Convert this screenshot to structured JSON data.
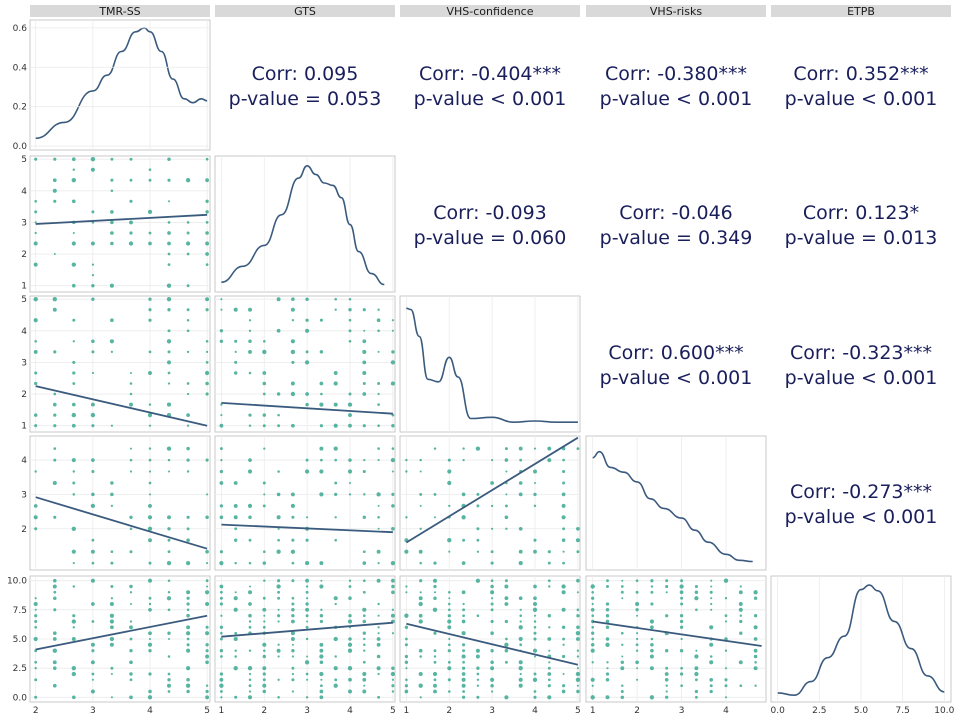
{
  "chart_data": {
    "type": "scatter-matrix",
    "title": "",
    "variables": [
      "TMR-SS",
      "GTS",
      "VHS-confidence",
      "VHS-risks",
      "ETPB"
    ],
    "colors": {
      "strip": "#d9d9d9",
      "points": "#3aa890",
      "line": "#3b5b7e",
      "corr_text": "#1a1f5c",
      "grid": "#ebebeb"
    },
    "diagonal_densities": [
      {
        "variable": "TMR-SS",
        "ylim": [
          0,
          0.62
        ],
        "y_ticks": [
          "0.0",
          "0.2",
          "0.4",
          "0.6"
        ],
        "x": [
          2.0,
          2.5,
          3.0,
          3.25,
          3.5,
          3.75,
          3.9,
          4.0,
          4.2,
          4.4,
          4.6,
          4.75,
          4.9,
          5.0
        ],
        "y": [
          0.04,
          0.12,
          0.28,
          0.36,
          0.48,
          0.58,
          0.6,
          0.58,
          0.48,
          0.34,
          0.24,
          0.22,
          0.24,
          0.23
        ]
      },
      {
        "variable": "GTS",
        "x": [
          1.0,
          1.5,
          2.0,
          2.4,
          2.8,
          3.0,
          3.2,
          3.4,
          3.6,
          3.8,
          4.0,
          4.2,
          4.5,
          4.8
        ],
        "y": [
          0.05,
          0.18,
          0.35,
          0.6,
          0.9,
          1.0,
          0.93,
          0.86,
          0.84,
          0.74,
          0.52,
          0.3,
          0.12,
          0.03
        ]
      },
      {
        "variable": "VHS-confidence",
        "x": [
          1.0,
          1.1,
          1.3,
          1.5,
          1.75,
          2.0,
          2.2,
          2.5,
          3.0,
          3.5,
          4.0,
          4.5,
          5.0
        ],
        "y": [
          0.98,
          0.97,
          0.75,
          0.4,
          0.38,
          0.58,
          0.42,
          0.08,
          0.09,
          0.05,
          0.06,
          0.05,
          0.05
        ]
      },
      {
        "variable": "VHS-risks",
        "x": [
          1.0,
          1.15,
          1.4,
          1.7,
          2.0,
          2.3,
          2.6,
          3.0,
          3.3,
          3.6,
          4.0,
          4.3,
          4.6
        ],
        "y": [
          0.9,
          0.95,
          0.82,
          0.78,
          0.7,
          0.56,
          0.48,
          0.4,
          0.3,
          0.2,
          0.1,
          0.05,
          0.04
        ]
      },
      {
        "variable": "ETPB",
        "x": [
          0.0,
          1.0,
          2.0,
          3.0,
          4.0,
          5.0,
          5.5,
          6.0,
          7.0,
          8.0,
          9.0,
          10.0
        ],
        "y": [
          0.05,
          0.03,
          0.15,
          0.36,
          0.55,
          0.96,
          1.0,
          0.95,
          0.68,
          0.44,
          0.2,
          0.06
        ]
      }
    ],
    "scatter_panels": [
      {
        "x": "TMR-SS",
        "y": "GTS",
        "line": [
          [
            2,
            2.95
          ],
          [
            5,
            3.24
          ]
        ]
      },
      {
        "x": "TMR-SS",
        "y": "VHS-confidence",
        "line": [
          [
            2,
            2.25
          ],
          [
            5,
            1.0
          ]
        ]
      },
      {
        "x": "GTS",
        "y": "VHS-confidence",
        "line": [
          [
            1,
            1.72
          ],
          [
            5,
            1.38
          ]
        ]
      },
      {
        "x": "TMR-SS",
        "y": "VHS-risks",
        "line": [
          [
            2,
            2.92
          ],
          [
            5,
            1.42
          ]
        ]
      },
      {
        "x": "GTS",
        "y": "VHS-risks",
        "line": [
          [
            1,
            2.12
          ],
          [
            5,
            1.9
          ]
        ]
      },
      {
        "x": "VHS-confidence",
        "y": "VHS-risks",
        "line": [
          [
            1,
            1.6
          ],
          [
            5,
            4.65
          ]
        ]
      },
      {
        "x": "TMR-SS",
        "y": "ETPB",
        "line": [
          [
            2,
            4.1
          ],
          [
            5,
            7.0
          ]
        ]
      },
      {
        "x": "GTS",
        "y": "ETPB",
        "line": [
          [
            1,
            5.2
          ],
          [
            5,
            6.4
          ]
        ]
      },
      {
        "x": "VHS-confidence",
        "y": "ETPB",
        "line": [
          [
            1,
            6.3
          ],
          [
            5,
            2.8
          ]
        ]
      },
      {
        "x": "VHS-risks",
        "y": "ETPB",
        "line": [
          [
            1,
            6.5
          ],
          [
            4.8,
            4.4
          ]
        ]
      }
    ],
    "correlations": [
      {
        "row": 0,
        "col": 1,
        "corr": "Corr: 0.095",
        "p": "p-value = 0.053"
      },
      {
        "row": 0,
        "col": 2,
        "corr": "Corr: -0.404***",
        "p": "p-value < 0.001"
      },
      {
        "row": 0,
        "col": 3,
        "corr": "Corr: -0.380***",
        "p": "p-value < 0.001"
      },
      {
        "row": 0,
        "col": 4,
        "corr": "Corr: 0.352***",
        "p": "p-value < 0.001"
      },
      {
        "row": 1,
        "col": 2,
        "corr": "Corr: -0.093",
        "p": "p-value = 0.060"
      },
      {
        "row": 1,
        "col": 3,
        "corr": "Corr: -0.046",
        "p": "p-value = 0.349"
      },
      {
        "row": 1,
        "col": 4,
        "corr": "Corr: 0.123*",
        "p": "p-value = 0.013"
      },
      {
        "row": 2,
        "col": 3,
        "corr": "Corr: 0.600***",
        "p": "p-value < 0.001"
      },
      {
        "row": 2,
        "col": 4,
        "corr": "Corr: -0.323***",
        "p": "p-value < 0.001"
      },
      {
        "row": 3,
        "col": 4,
        "corr": "Corr: -0.273***",
        "p": "p-value < 0.001"
      }
    ],
    "row_y_axes": [
      {
        "variable": "TMR-SS",
        "ticks": [
          "0.0",
          "0.2",
          "0.4",
          "0.6"
        ]
      },
      {
        "variable": "GTS",
        "ticks": [
          "1",
          "2",
          "3",
          "4",
          "5"
        ]
      },
      {
        "variable": "VHS-confidence",
        "ticks": [
          "1",
          "2",
          "3",
          "4",
          "5"
        ]
      },
      {
        "variable": "VHS-risks",
        "ticks": [
          "2",
          "3",
          "4"
        ]
      },
      {
        "variable": "ETPB",
        "ticks": [
          "0.0",
          "2.5",
          "5.0",
          "7.5",
          "10.0"
        ]
      }
    ],
    "column_x_axes": [
      {
        "variable": "TMR-SS",
        "ticks": [
          "2",
          "3",
          "4",
          "5"
        ]
      },
      {
        "variable": "GTS",
        "ticks": [
          "1",
          "2",
          "3",
          "4",
          "5"
        ]
      },
      {
        "variable": "VHS-confidence",
        "ticks": [
          "1",
          "2",
          "3",
          "4",
          "5"
        ]
      },
      {
        "variable": "VHS-risks",
        "ticks": [
          "1",
          "2",
          "3",
          "4"
        ]
      },
      {
        "variable": "ETPB",
        "ticks": [
          "0.0",
          "2.5",
          "5.0",
          "7.5",
          "10.0"
        ]
      }
    ],
    "grid": true
  }
}
